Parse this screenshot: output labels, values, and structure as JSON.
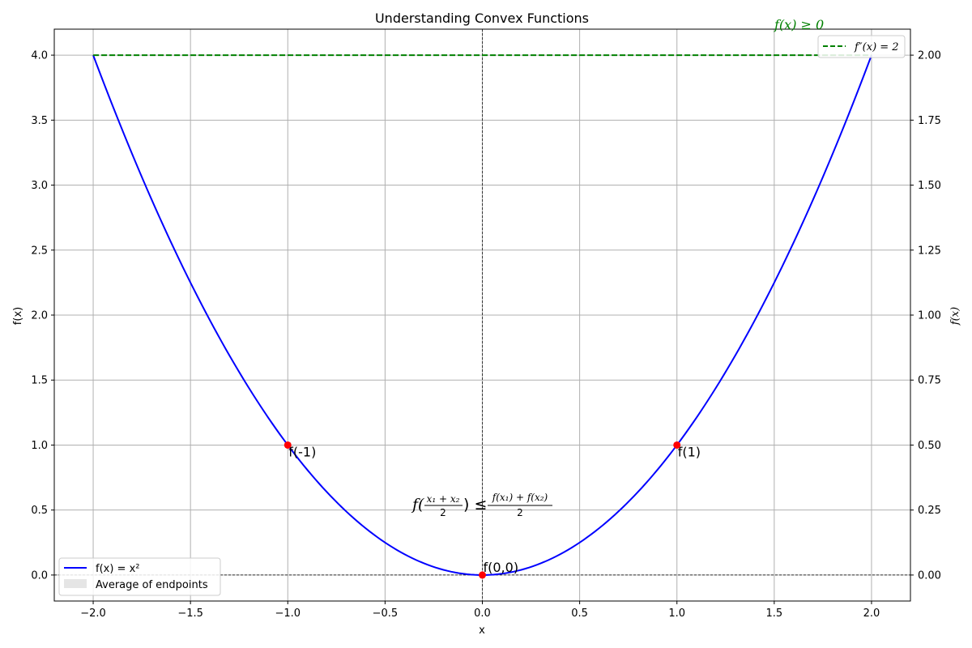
{
  "chart_data": {
    "type": "line",
    "title": "Understanding Convex Functions",
    "xlabel": "x",
    "ylabel": "f(x)",
    "ylabel_right": "f(x)",
    "xlim": [
      -2.2,
      2.2
    ],
    "ylim": [
      -0.2,
      4.2
    ],
    "ylim_right": [
      -0.1,
      2.1
    ],
    "xticks": [
      "−2.0",
      "−1.5",
      "−1.0",
      "−0.5",
      "0.0",
      "0.5",
      "1.0",
      "1.5",
      "2.0"
    ],
    "xtick_values": [
      -2.0,
      -1.5,
      -1.0,
      -0.5,
      0.0,
      0.5,
      1.0,
      1.5,
      2.0
    ],
    "yticks": [
      "0.0",
      "0.5",
      "1.0",
      "1.5",
      "2.0",
      "2.5",
      "3.0",
      "3.5",
      "4.0"
    ],
    "ytick_values": [
      0.0,
      0.5,
      1.0,
      1.5,
      2.0,
      2.5,
      3.0,
      3.5,
      4.0
    ],
    "yticks_right": [
      "0.00",
      "0.25",
      "0.50",
      "0.75",
      "1.00",
      "1.25",
      "1.50",
      "1.75",
      "2.00"
    ],
    "ytick_values_right": [
      0.0,
      0.25,
      0.5,
      0.75,
      1.0,
      1.25,
      1.5,
      1.75,
      2.0
    ],
    "grid": true,
    "series": [
      {
        "name": "f(x) = x²",
        "color": "#0000ff",
        "style": "solid",
        "x_range": [
          -2.0,
          2.0
        ],
        "function": "x^2",
        "axis": "left"
      },
      {
        "name": "f″(x) = 2",
        "color": "#008000",
        "style": "dashed",
        "x": [
          -2.0,
          2.0
        ],
        "values": [
          2.0,
          2.0
        ],
        "axis": "right"
      }
    ],
    "points": [
      {
        "x": -1.0,
        "y": 1.0,
        "label": "f(-1)"
      },
      {
        "x": 0.0,
        "y": 0.0,
        "label": "f(0,0)"
      },
      {
        "x": 1.0,
        "y": 1.0,
        "label": "f(1)"
      }
    ],
    "points_color": "#ff0000",
    "legend_left": {
      "position": "lower-left",
      "entries": [
        {
          "label": "f(x) = x²",
          "kind": "line",
          "color": "#0000ff"
        },
        {
          "label": "Average of endpoints",
          "kind": "patch",
          "color": "#e5e5e5"
        }
      ]
    },
    "legend_right": {
      "position": "upper-right",
      "entries": [
        {
          "label": "f″(x) = 2",
          "kind": "dashed-line",
          "color": "#008000"
        }
      ]
    },
    "annotations": {
      "convex_ineq": {
        "lhs_f": "f(",
        "num1": "x₁ + x₂",
        "den1": "2",
        "mid": ") ≤",
        "num2": "f(x₁) + f(x₂)",
        "den2": "2"
      },
      "second_deriv_note": {
        "text": "f(x) ≥ 0",
        "color": "#008000"
      }
    }
  }
}
